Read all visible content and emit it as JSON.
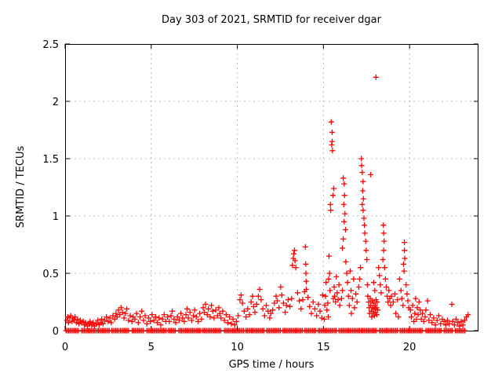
{
  "window": {
    "background": "#ffffff"
  },
  "chart_data": {
    "type": "scatter",
    "title": "Day 303 of 2021, SRMTID for receiver dgar",
    "xlabel": "GPS time / hours",
    "ylabel": "SRMTID / TECUs",
    "xlim": [
      0,
      24
    ],
    "ylim": [
      0,
      2.5
    ],
    "xticks": [
      0,
      5,
      10,
      15,
      20
    ],
    "xtick_labels": [
      "0",
      "5",
      "10",
      "15",
      "20"
    ],
    "yticks": [
      0,
      0.5,
      1,
      1.5,
      2,
      2.5
    ],
    "ytick_labels": [
      "0",
      "0.5",
      "1",
      "1.5",
      "2",
      "2.5"
    ],
    "grid": true,
    "grid_color": "#b8b8b8",
    "axis_color": "#000000",
    "marker": {
      "shape": "plus",
      "color": "#ff0000",
      "size": 7
    },
    "points": [
      [
        0.1,
        0.09
      ],
      [
        0.15,
        0.12
      ],
      [
        0.2,
        0.07
      ],
      [
        0.28,
        0.11
      ],
      [
        0.33,
        0.13
      ],
      [
        0.4,
        0.08
      ],
      [
        0.45,
        0.11
      ],
      [
        0.52,
        0.09
      ],
      [
        0.58,
        0.12
      ],
      [
        0.65,
        0.07
      ],
      [
        0.72,
        0.1
      ],
      [
        0.8,
        0.06
      ],
      [
        0.88,
        0.09
      ],
      [
        0.95,
        0.07
      ],
      [
        1.05,
        0.08
      ],
      [
        1.12,
        0.05
      ],
      [
        1.2,
        0.07
      ],
      [
        1.3,
        0.04
      ],
      [
        1.38,
        0.06
      ],
      [
        1.45,
        0.08
      ],
      [
        1.55,
        0.05
      ],
      [
        1.62,
        0.07
      ],
      [
        1.7,
        0.04
      ],
      [
        1.8,
        0.06
      ],
      [
        1.9,
        0.09
      ],
      [
        1.97,
        0.05
      ],
      [
        2.05,
        0.07
      ],
      [
        2.12,
        0.1
      ],
      [
        2.2,
        0.06
      ],
      [
        2.3,
        0.09
      ],
      [
        2.4,
        0.12
      ],
      [
        2.5,
        0.08
      ],
      [
        2.6,
        0.11
      ],
      [
        2.68,
        0.07
      ],
      [
        2.78,
        0.13
      ],
      [
        2.88,
        0.1
      ],
      [
        2.95,
        0.15
      ],
      [
        3.02,
        0.12
      ],
      [
        3.1,
        0.18
      ],
      [
        3.18,
        0.14
      ],
      [
        3.25,
        0.2
      ],
      [
        3.33,
        0.16
      ],
      [
        3.42,
        0.11
      ],
      [
        3.5,
        0.15
      ],
      [
        3.58,
        0.19
      ],
      [
        3.68,
        0.09
      ],
      [
        3.78,
        0.13
      ],
      [
        3.88,
        0.08
      ],
      [
        3.95,
        0.12
      ],
      [
        4.05,
        0.1
      ],
      [
        4.15,
        0.15
      ],
      [
        4.25,
        0.07
      ],
      [
        4.35,
        0.12
      ],
      [
        4.45,
        0.17
      ],
      [
        4.55,
        0.09
      ],
      [
        4.65,
        0.13
      ],
      [
        4.75,
        0.06
      ],
      [
        4.85,
        0.11
      ],
      [
        4.95,
        0.08
      ],
      [
        5.05,
        0.14
      ],
      [
        5.15,
        0.09
      ],
      [
        5.25,
        0.12
      ],
      [
        5.35,
        0.07
      ],
      [
        5.45,
        0.11
      ],
      [
        5.55,
        0.05
      ],
      [
        5.65,
        0.1
      ],
      [
        5.75,
        0.14
      ],
      [
        5.85,
        0.08
      ],
      [
        5.95,
        0.12
      ],
      [
        6.05,
        0.08
      ],
      [
        6.15,
        0.13
      ],
      [
        6.22,
        0.17
      ],
      [
        6.32,
        0.1
      ],
      [
        6.42,
        0.07
      ],
      [
        6.52,
        0.12
      ],
      [
        6.62,
        0.09
      ],
      [
        6.72,
        0.15
      ],
      [
        6.82,
        0.11
      ],
      [
        6.92,
        0.08
      ],
      [
        7.02,
        0.14
      ],
      [
        7.08,
        0.19
      ],
      [
        7.15,
        0.11
      ],
      [
        7.25,
        0.16
      ],
      [
        7.35,
        0.09
      ],
      [
        7.45,
        0.13
      ],
      [
        7.52,
        0.18
      ],
      [
        7.62,
        0.12
      ],
      [
        7.72,
        0.08
      ],
      [
        7.82,
        0.15
      ],
      [
        7.92,
        0.1
      ],
      [
        8.02,
        0.2
      ],
      [
        8.08,
        0.16
      ],
      [
        8.15,
        0.23
      ],
      [
        8.25,
        0.14
      ],
      [
        8.32,
        0.19
      ],
      [
        8.42,
        0.12
      ],
      [
        8.5,
        0.22
      ],
      [
        8.58,
        0.17
      ],
      [
        8.65,
        0.11
      ],
      [
        8.75,
        0.18
      ],
      [
        8.85,
        0.13
      ],
      [
        8.92,
        0.2
      ],
      [
        8.98,
        0.15
      ],
      [
        9.05,
        0.11
      ],
      [
        9.15,
        0.17
      ],
      [
        9.25,
        0.09
      ],
      [
        9.35,
        0.14
      ],
      [
        9.45,
        0.07
      ],
      [
        9.55,
        0.12
      ],
      [
        9.65,
        0.06
      ],
      [
        9.75,
        0.1
      ],
      [
        9.85,
        0.05
      ],
      [
        9.95,
        0.08
      ],
      [
        10.05,
        0.13
      ],
      [
        10.15,
        0.27
      ],
      [
        10.22,
        0.31
      ],
      [
        10.3,
        0.24
      ],
      [
        10.4,
        0.17
      ],
      [
        10.5,
        0.12
      ],
      [
        10.6,
        0.19
      ],
      [
        10.7,
        0.14
      ],
      [
        10.8,
        0.25
      ],
      [
        10.88,
        0.3
      ],
      [
        10.95,
        0.21
      ],
      [
        11.02,
        0.16
      ],
      [
        11.12,
        0.23
      ],
      [
        11.22,
        0.3
      ],
      [
        11.3,
        0.36
      ],
      [
        11.38,
        0.27
      ],
      [
        11.48,
        0.19
      ],
      [
        11.58,
        0.13
      ],
      [
        11.68,
        0.22
      ],
      [
        11.78,
        0.17
      ],
      [
        11.88,
        0.11
      ],
      [
        11.95,
        0.15
      ],
      [
        12.05,
        0.18
      ],
      [
        12.15,
        0.24
      ],
      [
        12.25,
        0.3
      ],
      [
        12.32,
        0.26
      ],
      [
        12.42,
        0.2
      ],
      [
        12.52,
        0.38
      ],
      [
        12.58,
        0.31
      ],
      [
        12.68,
        0.24
      ],
      [
        12.78,
        0.16
      ],
      [
        12.85,
        0.22
      ],
      [
        12.95,
        0.27
      ],
      [
        13.05,
        0.21
      ],
      [
        13.15,
        0.28
      ],
      [
        13.2,
        0.57
      ],
      [
        13.25,
        0.63
      ],
      [
        13.28,
        0.67
      ],
      [
        13.32,
        0.7
      ],
      [
        13.35,
        0.61
      ],
      [
        13.4,
        0.55
      ],
      [
        13.5,
        0.33
      ],
      [
        13.6,
        0.26
      ],
      [
        13.7,
        0.19
      ],
      [
        13.8,
        0.27
      ],
      [
        13.9,
        0.34
      ],
      [
        13.95,
        0.73
      ],
      [
        13.97,
        0.58
      ],
      [
        13.98,
        0.5
      ],
      [
        14.0,
        0.43
      ],
      [
        14.0,
        0.36
      ],
      [
        14.1,
        0.29
      ],
      [
        14.2,
        0.21
      ],
      [
        14.3,
        0.15
      ],
      [
        14.4,
        0.25
      ],
      [
        14.5,
        0.19
      ],
      [
        14.6,
        0.13
      ],
      [
        14.7,
        0.23
      ],
      [
        14.8,
        0.17
      ],
      [
        14.9,
        0.11
      ],
      [
        14.95,
        0.31
      ],
      [
        15.05,
        0.1
      ],
      [
        15.08,
        0.22
      ],
      [
        15.12,
        0.3
      ],
      [
        15.15,
        0.42
      ],
      [
        15.2,
        0.18
      ],
      [
        15.25,
        0.24
      ],
      [
        15.28,
        0.12
      ],
      [
        15.3,
        0.45
      ],
      [
        15.32,
        0.65
      ],
      [
        15.35,
        0.5
      ],
      [
        15.38,
        0.35
      ],
      [
        15.4,
        1.1
      ],
      [
        15.42,
        1.05
      ],
      [
        15.45,
        1.82
      ],
      [
        15.48,
        1.62
      ],
      [
        15.5,
        1.73
      ],
      [
        15.5,
        1.65
      ],
      [
        15.52,
        1.57
      ],
      [
        15.55,
        1.18
      ],
      [
        15.58,
        0.28
      ],
      [
        15.6,
        1.24
      ],
      [
        15.62,
        0.38
      ],
      [
        15.65,
        0.3
      ],
      [
        15.7,
        0.25
      ],
      [
        15.75,
        0.47
      ],
      [
        15.8,
        0.33
      ],
      [
        15.85,
        0.27
      ],
      [
        15.9,
        0.4
      ],
      [
        15.95,
        0.22
      ],
      [
        16.05,
        0.28
      ],
      [
        16.1,
        0.35
      ],
      [
        16.1,
        0.72
      ],
      [
        16.15,
        0.8
      ],
      [
        16.15,
        1.33
      ],
      [
        16.18,
        1.1
      ],
      [
        16.2,
        1.28
      ],
      [
        16.2,
        0.95
      ],
      [
        16.22,
        1.18
      ],
      [
        16.25,
        1.02
      ],
      [
        16.28,
        0.88
      ],
      [
        16.3,
        0.6
      ],
      [
        16.35,
        0.5
      ],
      [
        16.4,
        0.42
      ],
      [
        16.45,
        0.3
      ],
      [
        16.5,
        0.22
      ],
      [
        16.55,
        0.52
      ],
      [
        16.6,
        0.35
      ],
      [
        16.62,
        0.15
      ],
      [
        16.68,
        0.28
      ],
      [
        16.75,
        0.45
      ],
      [
        16.8,
        0.2
      ],
      [
        16.88,
        0.32
      ],
      [
        16.95,
        0.25
      ],
      [
        17.05,
        0.38
      ],
      [
        17.1,
        0.45
      ],
      [
        17.15,
        0.55
      ],
      [
        17.2,
        1.5
      ],
      [
        17.22,
        1.44
      ],
      [
        17.25,
        1.38
      ],
      [
        17.25,
        1.1
      ],
      [
        17.28,
        1.22
      ],
      [
        17.3,
        1.3
      ],
      [
        17.3,
        1.05
      ],
      [
        17.32,
        1.15
      ],
      [
        17.35,
        0.98
      ],
      [
        17.38,
        0.92
      ],
      [
        17.4,
        0.85
      ],
      [
        17.45,
        0.78
      ],
      [
        17.48,
        0.7
      ],
      [
        17.52,
        0.62
      ],
      [
        17.55,
        0.4
      ],
      [
        17.58,
        0.3
      ],
      [
        17.74,
        1.36
      ],
      [
        17.62,
        0.25
      ],
      [
        17.65,
        0.2
      ],
      [
        17.68,
        0.15
      ],
      [
        17.72,
        0.28
      ],
      [
        17.74,
        0.22
      ],
      [
        17.78,
        0.17
      ],
      [
        17.8,
        0.12
      ],
      [
        17.83,
        0.26
      ],
      [
        17.85,
        0.2
      ],
      [
        17.88,
        0.15
      ],
      [
        17.9,
        0.24
      ],
      [
        17.92,
        0.42
      ],
      [
        17.94,
        0.19
      ],
      [
        17.96,
        0.13
      ],
      [
        17.98,
        0.35
      ],
      [
        18.0,
        0.22
      ],
      [
        18.02,
        0.16
      ],
      [
        18.05,
        2.21
      ],
      [
        18.05,
        0.27
      ],
      [
        18.08,
        0.2
      ],
      [
        18.1,
        0.14
      ],
      [
        18.12,
        0.25
      ],
      [
        18.15,
        0.18
      ],
      [
        18.2,
        0.55
      ],
      [
        18.25,
        0.48
      ],
      [
        18.3,
        0.4
      ],
      [
        18.35,
        0.33
      ],
      [
        18.45,
        0.62
      ],
      [
        18.48,
        0.92
      ],
      [
        18.5,
        0.85
      ],
      [
        18.5,
        0.7
      ],
      [
        18.52,
        0.78
      ],
      [
        18.55,
        0.55
      ],
      [
        18.6,
        0.45
      ],
      [
        18.65,
        0.38
      ],
      [
        18.7,
        0.3
      ],
      [
        18.75,
        0.25
      ],
      [
        18.8,
        0.35
      ],
      [
        18.85,
        0.28
      ],
      [
        18.9,
        0.22
      ],
      [
        18.95,
        0.3
      ],
      [
        19.05,
        0.25
      ],
      [
        19.15,
        0.32
      ],
      [
        19.2,
        0.15
      ],
      [
        19.3,
        0.27
      ],
      [
        19.35,
        0.12
      ],
      [
        19.42,
        0.45
      ],
      [
        19.5,
        0.35
      ],
      [
        19.55,
        0.28
      ],
      [
        19.62,
        0.22
      ],
      [
        19.65,
        0.58
      ],
      [
        19.68,
        0.52
      ],
      [
        19.7,
        0.77
      ],
      [
        19.7,
        0.7
      ],
      [
        19.72,
        0.63
      ],
      [
        19.8,
        0.4
      ],
      [
        19.85,
        0.32
      ],
      [
        19.9,
        0.26
      ],
      [
        19.95,
        0.2
      ],
      [
        20.05,
        0.18
      ],
      [
        20.1,
        0.12
      ],
      [
        20.18,
        0.22
      ],
      [
        20.25,
        0.08
      ],
      [
        20.3,
        0.15
      ],
      [
        20.35,
        0.28
      ],
      [
        20.4,
        0.1
      ],
      [
        20.45,
        0.2
      ],
      [
        20.5,
        0.14
      ],
      [
        20.55,
        0.25
      ],
      [
        20.62,
        0.18
      ],
      [
        20.68,
        0.1
      ],
      [
        20.75,
        0.15
      ],
      [
        20.82,
        0.08
      ],
      [
        20.9,
        0.12
      ],
      [
        20.95,
        0.18
      ],
      [
        21.05,
        0.26
      ],
      [
        21.12,
        0.09
      ],
      [
        21.2,
        0.14
      ],
      [
        21.3,
        0.07
      ],
      [
        21.4,
        0.11
      ],
      [
        21.5,
        0.05
      ],
      [
        21.6,
        0.09
      ],
      [
        21.7,
        0.13
      ],
      [
        21.8,
        0.06
      ],
      [
        21.9,
        0.1
      ],
      [
        22.0,
        0.08
      ],
      [
        22.1,
        0.05
      ],
      [
        22.2,
        0.09
      ],
      [
        22.3,
        0.06
      ],
      [
        22.45,
        0.23
      ],
      [
        22.5,
        0.08
      ],
      [
        22.6,
        0.05
      ],
      [
        22.7,
        0.1
      ],
      [
        22.8,
        0.07
      ],
      [
        22.9,
        0.04
      ],
      [
        23.0,
        0.08
      ],
      [
        23.1,
        0.05
      ],
      [
        23.2,
        0.09
      ],
      [
        23.3,
        0.12
      ],
      [
        23.4,
        0.14
      ]
    ],
    "baseline_band": {
      "y": 0.0,
      "step": 0.08,
      "runs": [
        [
          0.05,
          0.8
        ],
        [
          0.95,
          1.75
        ],
        [
          1.85,
          2.6
        ],
        [
          2.7,
          3.1
        ],
        [
          3.2,
          3.75
        ],
        [
          3.9,
          4.6
        ],
        [
          4.75,
          5.9
        ],
        [
          6.0,
          6.45
        ],
        [
          6.6,
          7.9
        ],
        [
          8.0,
          9.1
        ],
        [
          9.25,
          10.4
        ],
        [
          10.5,
          11.6
        ],
        [
          11.7,
          12.55
        ],
        [
          12.65,
          13.8
        ],
        [
          13.9,
          14.55
        ],
        [
          14.7,
          15.8
        ],
        [
          15.9,
          17.1
        ],
        [
          17.2,
          18.1
        ],
        [
          18.25,
          19.3
        ],
        [
          19.45,
          20.8
        ],
        [
          20.95,
          21.85
        ],
        [
          22.0,
          22.55
        ],
        [
          22.65,
          23.25
        ]
      ]
    }
  }
}
